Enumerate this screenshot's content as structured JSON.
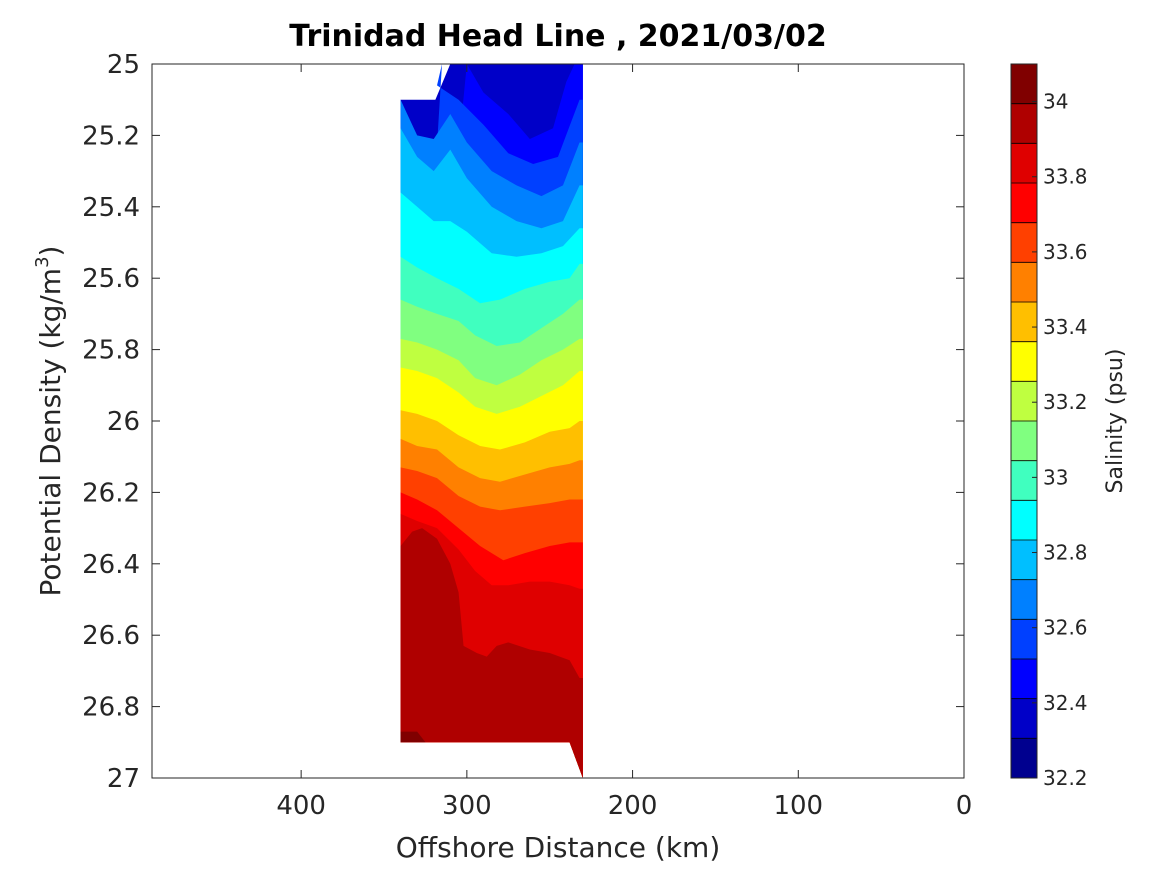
{
  "chart_data": {
    "type": "contour",
    "title": "Trinidad Head Line , 2021/03/02",
    "xlabel": "Offshore Distance (km)",
    "ylabel_main": "Potential Density (kg/m",
    "ylabel_sup": "3",
    "ylabel_close": ")",
    "xlim": [
      490,
      0
    ],
    "ylim": [
      25,
      27
    ],
    "x_reversed": true,
    "y_reversed": true,
    "x_ticks": [
      400,
      300,
      200,
      100,
      0
    ],
    "x_tick_labels": [
      "400",
      "300",
      "200",
      "100",
      "0"
    ],
    "y_ticks": [
      25,
      25.2,
      25.4,
      25.6,
      25.8,
      26,
      26.2,
      26.4,
      26.6,
      26.8,
      27
    ],
    "y_tick_labels": [
      "25",
      "25.2",
      "25.4",
      "25.6",
      "25.8",
      "26",
      "26.2",
      "26.4",
      "26.6",
      "26.8",
      "27"
    ],
    "colorbar": {
      "label": "Salinity (psu)",
      "min": 32.2,
      "max": 34.1,
      "step": 0.1,
      "ticks": [
        32.2,
        32.4,
        32.6,
        32.8,
        33,
        33.2,
        33.4,
        33.6,
        33.8,
        34
      ],
      "tick_labels": [
        "32.2",
        "32.4",
        "32.6",
        "32.8",
        "33",
        "33.2",
        "33.4",
        "33.6",
        "33.8",
        "34"
      ],
      "colors": [
        "#00008f",
        "#0000c8",
        "#0000ff",
        "#0040ff",
        "#0080ff",
        "#00bfff",
        "#00ffff",
        "#40ffbf",
        "#80ff80",
        "#bfff40",
        "#ffff00",
        "#ffbf00",
        "#ff8000",
        "#ff4000",
        "#ff0000",
        "#df0000",
        "#af0000",
        "#800000"
      ]
    },
    "levels": [
      {
        "value": 32.2,
        "color": "#00008f",
        "profile": [
          [
            260,
            25.02
          ],
          [
            250,
            25.02
          ]
        ]
      },
      {
        "value": 32.4,
        "color": "#0000c8",
        "profile": [
          [
            280,
            25.0
          ],
          [
            270,
            25.05
          ],
          [
            258,
            25.09
          ],
          [
            245,
            25.05
          ],
          [
            240,
            25.0
          ]
        ]
      },
      {
        "value": 32.5,
        "color": "#0000ff",
        "profile": [
          [
            300,
            25.0
          ],
          [
            290,
            25.08
          ],
          [
            275,
            25.14
          ],
          [
            262,
            25.21
          ],
          [
            248,
            25.18
          ],
          [
            240,
            25.05
          ],
          [
            235,
            25.0
          ]
        ]
      },
      {
        "value": 32.6,
        "color": "#0040ff",
        "profile": [
          [
            315,
            25.0
          ],
          [
            318,
            25.06
          ],
          [
            305,
            25.1
          ],
          [
            290,
            25.17
          ],
          [
            275,
            25.25
          ],
          [
            260,
            25.28
          ],
          [
            245,
            25.26
          ],
          [
            232,
            25.1
          ]
        ]
      },
      {
        "value": 32.7,
        "color": "#0080ff",
        "profile": [
          [
            340,
            25.1
          ],
          [
            330,
            25.2
          ],
          [
            320,
            25.21
          ],
          [
            310,
            25.14
          ],
          [
            300,
            25.22
          ],
          [
            285,
            25.3
          ],
          [
            270,
            25.34
          ],
          [
            255,
            25.37
          ],
          [
            242,
            25.34
          ],
          [
            232,
            25.22
          ]
        ]
      },
      {
        "value": 32.8,
        "color": "#00bfff",
        "profile": [
          [
            340,
            25.18
          ],
          [
            330,
            25.26
          ],
          [
            320,
            25.3
          ],
          [
            310,
            25.24
          ],
          [
            300,
            25.32
          ],
          [
            285,
            25.4
          ],
          [
            270,
            25.44
          ],
          [
            255,
            25.46
          ],
          [
            242,
            25.44
          ],
          [
            232,
            25.34
          ]
        ]
      },
      {
        "value": 32.9,
        "color": "#00ffff",
        "profile": [
          [
            340,
            25.36
          ],
          [
            330,
            25.4
          ],
          [
            320,
            25.44
          ],
          [
            310,
            25.44
          ],
          [
            300,
            25.47
          ],
          [
            285,
            25.53
          ],
          [
            270,
            25.54
          ],
          [
            255,
            25.53
          ],
          [
            242,
            25.51
          ],
          [
            232,
            25.46
          ]
        ]
      },
      {
        "value": 33.0,
        "color": "#40ffbf",
        "profile": [
          [
            340,
            25.54
          ],
          [
            330,
            25.57
          ],
          [
            318,
            25.6
          ],
          [
            305,
            25.63
          ],
          [
            292,
            25.67
          ],
          [
            280,
            25.66
          ],
          [
            265,
            25.63
          ],
          [
            250,
            25.61
          ],
          [
            238,
            25.6
          ],
          [
            232,
            25.56
          ]
        ]
      },
      {
        "value": 33.1,
        "color": "#80ff80",
        "profile": [
          [
            340,
            25.66
          ],
          [
            330,
            25.68
          ],
          [
            318,
            25.7
          ],
          [
            305,
            25.72
          ],
          [
            295,
            25.76
          ],
          [
            282,
            25.79
          ],
          [
            268,
            25.78
          ],
          [
            255,
            25.74
          ],
          [
            242,
            25.7
          ],
          [
            232,
            25.66
          ]
        ]
      },
      {
        "value": 33.2,
        "color": "#bfff40",
        "profile": [
          [
            340,
            25.77
          ],
          [
            330,
            25.78
          ],
          [
            318,
            25.8
          ],
          [
            305,
            25.83
          ],
          [
            295,
            25.88
          ],
          [
            282,
            25.9
          ],
          [
            268,
            25.87
          ],
          [
            255,
            25.83
          ],
          [
            242,
            25.8
          ],
          [
            232,
            25.77
          ]
        ]
      },
      {
        "value": 33.3,
        "color": "#ffff00",
        "profile": [
          [
            340,
            25.85
          ],
          [
            330,
            25.86
          ],
          [
            318,
            25.88
          ],
          [
            305,
            25.92
          ],
          [
            295,
            25.96
          ],
          [
            282,
            25.98
          ],
          [
            268,
            25.96
          ],
          [
            255,
            25.93
          ],
          [
            242,
            25.9
          ],
          [
            232,
            25.86
          ]
        ]
      },
      {
        "value": 33.4,
        "color": "#ffbf00",
        "profile": [
          [
            340,
            25.97
          ],
          [
            330,
            25.98
          ],
          [
            318,
            26.0
          ],
          [
            305,
            26.04
          ],
          [
            292,
            26.07
          ],
          [
            280,
            26.08
          ],
          [
            265,
            26.06
          ],
          [
            250,
            26.03
          ],
          [
            238,
            26.02
          ],
          [
            232,
            26.0
          ]
        ]
      },
      {
        "value": 33.5,
        "color": "#ff8000",
        "profile": [
          [
            340,
            26.05
          ],
          [
            330,
            26.07
          ],
          [
            318,
            26.08
          ],
          [
            305,
            26.13
          ],
          [
            292,
            26.16
          ],
          [
            280,
            26.17
          ],
          [
            265,
            26.15
          ],
          [
            250,
            26.13
          ],
          [
            238,
            26.12
          ],
          [
            232,
            26.11
          ]
        ]
      },
      {
        "value": 33.6,
        "color": "#ff4000",
        "profile": [
          [
            340,
            26.13
          ],
          [
            330,
            26.14
          ],
          [
            318,
            26.16
          ],
          [
            305,
            26.21
          ],
          [
            292,
            26.24
          ],
          [
            280,
            26.25
          ],
          [
            265,
            26.24
          ],
          [
            250,
            26.23
          ],
          [
            238,
            26.22
          ],
          [
            232,
            26.22
          ]
        ]
      },
      {
        "value": 33.7,
        "color": "#ff0000",
        "profile": [
          [
            340,
            26.2
          ],
          [
            330,
            26.22
          ],
          [
            318,
            26.25
          ],
          [
            305,
            26.3
          ],
          [
            292,
            26.35
          ],
          [
            278,
            26.39
          ],
          [
            265,
            26.37
          ],
          [
            250,
            26.35
          ],
          [
            238,
            26.34
          ],
          [
            232,
            26.34
          ]
        ]
      },
      {
        "value": 33.8,
        "color": "#df0000",
        "profile": [
          [
            340,
            26.26
          ],
          [
            330,
            26.28
          ],
          [
            318,
            26.3
          ],
          [
            305,
            26.36
          ],
          [
            295,
            26.42
          ],
          [
            285,
            26.46
          ],
          [
            275,
            26.46
          ],
          [
            262,
            26.45
          ],
          [
            250,
            26.45
          ],
          [
            238,
            26.46
          ],
          [
            232,
            26.47
          ]
        ]
      },
      {
        "value": 33.9,
        "color": "#af0000",
        "profile": [
          [
            340,
            26.35
          ],
          [
            333,
            26.31
          ],
          [
            327,
            26.3
          ],
          [
            318,
            26.33
          ],
          [
            310,
            26.4
          ],
          [
            305,
            26.48
          ],
          [
            303,
            26.58
          ],
          [
            302,
            26.63
          ],
          [
            294,
            26.65
          ],
          [
            288,
            26.66
          ],
          [
            282,
            26.63
          ],
          [
            275,
            26.62
          ],
          [
            262,
            26.64
          ],
          [
            250,
            26.65
          ],
          [
            238,
            26.67
          ],
          [
            232,
            26.72
          ]
        ]
      },
      {
        "value": 34.0,
        "color": "#800000",
        "profile": [
          [
            340,
            26.87
          ],
          [
            330,
            26.87
          ],
          [
            325,
            26.9
          ]
        ]
      }
    ],
    "data_extent": {
      "top": [
        [
          340,
          25.1
        ],
        [
          319,
          25.1
        ],
        [
          310,
          25.0
        ],
        [
          230,
          25.0
        ]
      ],
      "right_edge_x": 230,
      "bottom": [
        [
          230,
          27.0
        ],
        [
          238,
          26.9
        ],
        [
          340,
          26.9
        ]
      ]
    }
  }
}
